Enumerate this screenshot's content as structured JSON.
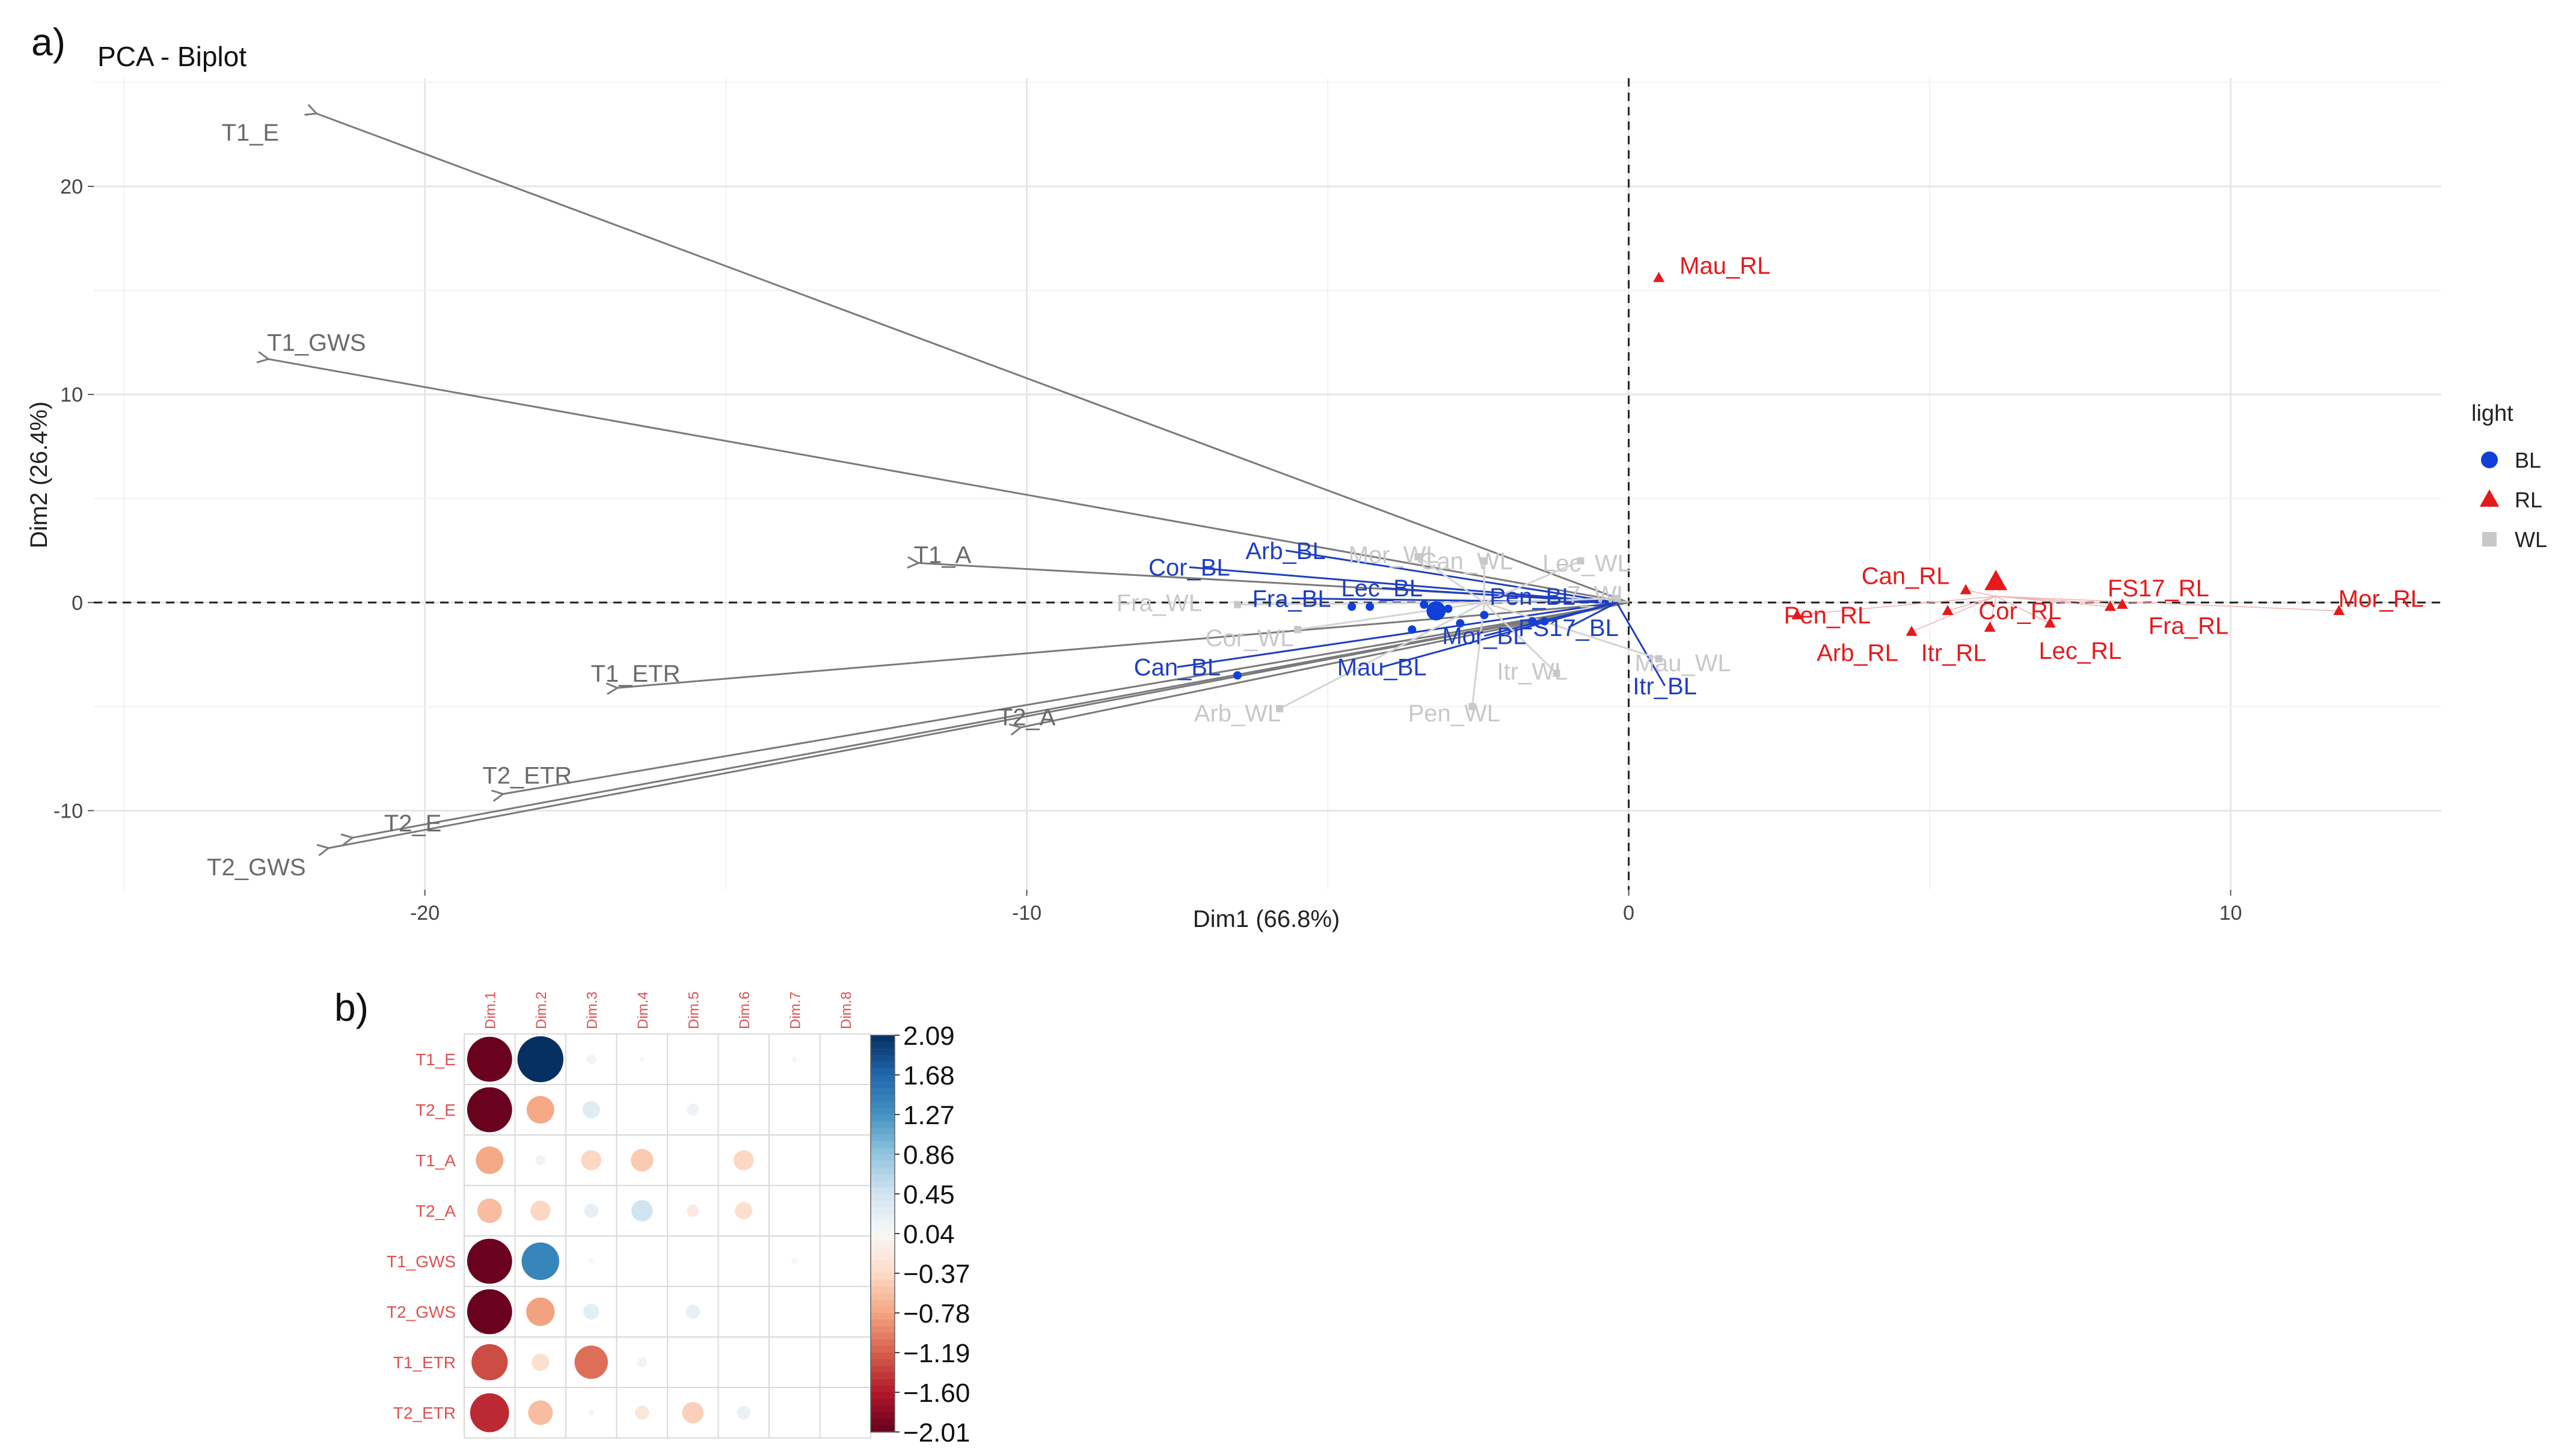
{
  "panel_a_label": "a)",
  "panel_b_label": "b)",
  "colors": {
    "BL": "#1f3fbf",
    "BL_point": "#1040d8",
    "RL": "#e41a1c",
    "WL": "#c8c8c8",
    "arrow": "#7a7a7a",
    "var_label": "#6a6a6a",
    "grid": "#ebebeb",
    "corr_neg": "#8b0a1e",
    "corr_pos": "#053061",
    "corr_label": "#e05050"
  },
  "chart_data": [
    {
      "type": "scatter",
      "title": "PCA - Biplot",
      "xlabel": "Dim1 (66.8%)",
      "ylabel": "Dim2 (26.4%)",
      "xlim": [
        -25.5,
        13.5
      ],
      "ylim": [
        -13.8,
        25.2
      ],
      "xticks": [
        -20,
        -10,
        0,
        10
      ],
      "yticks": [
        -10,
        0,
        10,
        20
      ],
      "grid": true,
      "legend": {
        "title": "light",
        "placement": "right",
        "entries": [
          {
            "key": "BL",
            "label": "BL",
            "shape": "circle"
          },
          {
            "key": "RL",
            "label": "RL",
            "shape": "triangle"
          },
          {
            "key": "WL",
            "label": "WL",
            "shape": "square"
          }
        ]
      },
      "variables": [
        {
          "name": "T1_E",
          "x": -21.8,
          "y": 23.5,
          "lx": -22.9,
          "ly": 22.6
        },
        {
          "name": "T1_GWS",
          "x": -22.6,
          "y": 11.7,
          "lx": -21.8,
          "ly": 12.5
        },
        {
          "name": "T1_A",
          "x": -11.8,
          "y": 1.9,
          "lx": -11.4,
          "ly": 2.3
        },
        {
          "name": "T1_ETR",
          "x": -16.8,
          "y": -4.1,
          "lx": -16.5,
          "ly": -3.4
        },
        {
          "name": "T2_A",
          "x": -10.1,
          "y": -6.0,
          "lx": -10.0,
          "ly": -5.5
        },
        {
          "name": "T2_ETR",
          "x": -18.7,
          "y": -9.2,
          "lx": -18.3,
          "ly": -8.3
        },
        {
          "name": "T2_E",
          "x": -21.2,
          "y": -11.3,
          "lx": -20.2,
          "ly": -10.6
        },
        {
          "name": "T2_GWS",
          "x": -21.6,
          "y": -11.8,
          "lx": -22.8,
          "ly": -12.7
        }
      ],
      "points": [
        {
          "label": "Mau_RL",
          "group": "RL",
          "x": 0.5,
          "y": 15.6,
          "lx": 1.6,
          "ly": 16.2
        },
        {
          "label": "Can_RL",
          "group": "RL",
          "x": 5.6,
          "y": 0.6,
          "lx": 4.6,
          "ly": 1.3
        },
        {
          "label": "Pen_RL",
          "group": "RL",
          "x": 2.8,
          "y": -0.6,
          "lx": 3.3,
          "ly": -0.6
        },
        {
          "label": "Cor_RL",
          "group": "RL",
          "x": 5.3,
          "y": -0.4,
          "lx": 6.5,
          "ly": -0.4
        },
        {
          "label": "FS17_RL",
          "group": "RL",
          "x": 8.2,
          "y": -0.1,
          "lx": 8.8,
          "ly": 0.7
        },
        {
          "label": "Mor_RL",
          "group": "RL",
          "x": 11.8,
          "y": -0.4,
          "lx": 12.5,
          "ly": 0.2
        },
        {
          "label": "Fra_RL",
          "group": "RL",
          "x": 8.0,
          "y": -0.2,
          "lx": 9.3,
          "ly": -1.1
        },
        {
          "label": "Arb_RL",
          "group": "RL",
          "x": 4.7,
          "y": -1.4,
          "lx": 3.8,
          "ly": -2.4
        },
        {
          "label": "Itr_RL",
          "group": "RL",
          "x": 6.0,
          "y": -1.2,
          "lx": 5.4,
          "ly": -2.4
        },
        {
          "label": "Lec_RL",
          "group": "RL",
          "x": 7.0,
          "y": -1.0,
          "lx": 7.5,
          "ly": -2.3
        },
        {
          "label": "Cor_BL",
          "group": "BL",
          "x": -4.6,
          "y": -0.2,
          "lx": -7.3,
          "ly": 1.7
        },
        {
          "label": "Arb_BL",
          "group": "BL",
          "x": -4.3,
          "y": -0.2,
          "lx": -5.7,
          "ly": 2.5
        },
        {
          "label": "Fra_BL",
          "group": "BL",
          "x": -3.4,
          "y": -0.1,
          "lx": -5.6,
          "ly": 0.2
        },
        {
          "label": "Lec_BL",
          "group": "BL",
          "x": -3.0,
          "y": -0.3,
          "lx": -4.1,
          "ly": 0.7
        },
        {
          "label": "Pen_BL",
          "group": "BL",
          "x": -2.4,
          "y": -0.6,
          "lx": -1.6,
          "ly": 0.3
        },
        {
          "label": "Mor_BL",
          "group": "BL",
          "x": -2.8,
          "y": -1.0,
          "lx": -2.4,
          "ly": -1.6
        },
        {
          "label": "Mau_BL",
          "group": "BL",
          "x": -3.6,
          "y": -1.3,
          "lx": -4.1,
          "ly": -3.1
        },
        {
          "label": "Can_BL",
          "group": "BL",
          "x": -6.5,
          "y": -3.5,
          "lx": -7.5,
          "ly": -3.1
        },
        {
          "label": "FS17_BL",
          "group": "BL",
          "x": -1.4,
          "y": -0.9,
          "lx": -1.0,
          "ly": -1.2
        },
        {
          "label": "Itr_BL",
          "group": "BL",
          "x": -1.6,
          "y": -0.9,
          "lx": 0.6,
          "ly": -4.0
        },
        {
          "label": "Mor_WL",
          "group": "WL",
          "x": -3.5,
          "y": 2.2,
          "lx": -3.9,
          "ly": 2.3
        },
        {
          "label": "Can_WL",
          "group": "WL",
          "x": -2.4,
          "y": 2.0,
          "lx": -2.7,
          "ly": 2.0
        },
        {
          "label": "Lec_WL",
          "group": "WL",
          "x": -0.8,
          "y": 2.0,
          "lx": -0.7,
          "ly": 1.9
        },
        {
          "label": "Fra_WL",
          "group": "WL",
          "x": -6.5,
          "y": -0.1,
          "lx": -7.8,
          "ly": 0.0
        },
        {
          "label": "Cor_WL",
          "group": "WL",
          "x": -5.5,
          "y": -1.3,
          "lx": -6.3,
          "ly": -1.7
        },
        {
          "label": "Arb_WL",
          "group": "WL",
          "x": -5.8,
          "y": -5.1,
          "lx": -6.5,
          "ly": -5.3
        },
        {
          "label": "Pen_WL",
          "group": "WL",
          "x": -2.6,
          "y": -5.0,
          "lx": -2.9,
          "ly": -5.3
        },
        {
          "label": "Itr_WL",
          "group": "WL",
          "x": -1.2,
          "y": -3.4,
          "lx": -1.6,
          "ly": -3.3
        },
        {
          "label": "Mau_WL",
          "group": "WL",
          "x": 0.5,
          "y": -2.7,
          "lx": 0.9,
          "ly": -2.9
        },
        {
          "label": "FS17_WL",
          "display": "7_WL",
          "group": "WL",
          "x": -0.2,
          "y": 0.2,
          "lx": -0.5,
          "ly": 0.4
        }
      ],
      "centroids": [
        {
          "group": "BL",
          "x": -3.2,
          "y": -0.4
        },
        {
          "group": "RL",
          "x": 6.1,
          "y": 1.0
        }
      ]
    },
    {
      "type": "heatmap",
      "subtype": "correlation-circle",
      "columns": [
        "Dim.1",
        "Dim.2",
        "Dim.3",
        "Dim.4",
        "Dim.5",
        "Dim.6",
        "Dim.7",
        "Dim.8"
      ],
      "rows": [
        "T1_E",
        "T2_E",
        "T1_A",
        "T2_A",
        "T1_GWS",
        "T2_GWS",
        "T1_ETR",
        "T2_ETR"
      ],
      "values": [
        [
          -2.0,
          2.09,
          0.1,
          0.02,
          0.0,
          0.0,
          0.03,
          0.0
        ],
        [
          -2.0,
          -0.75,
          0.3,
          0.0,
          0.15,
          0.0,
          0.0,
          0.0
        ],
        [
          -0.75,
          0.1,
          -0.4,
          -0.5,
          0.0,
          -0.4,
          0.0,
          0.0
        ],
        [
          -0.6,
          -0.4,
          0.2,
          0.45,
          -0.15,
          -0.3,
          0.0,
          0.0
        ],
        [
          -2.0,
          1.4,
          0.03,
          0.0,
          0.0,
          0.0,
          0.04,
          0.0
        ],
        [
          -2.0,
          -0.8,
          0.25,
          0.0,
          0.2,
          0.0,
          0.0,
          0.0
        ],
        [
          -1.3,
          -0.3,
          -1.1,
          0.1,
          0.0,
          0.0,
          0.0,
          0.0
        ],
        [
          -1.5,
          -0.6,
          -0.03,
          -0.2,
          -0.45,
          0.18,
          0.0,
          0.0
        ]
      ],
      "colorbar_ticks": [
        "2.09",
        "1.68",
        "1.27",
        "0.86",
        "0.45",
        "0.04",
        "−0.37",
        "−0.78",
        "−1.19",
        "−1.60",
        "−2.01"
      ],
      "range": [
        -2.01,
        2.09
      ]
    }
  ]
}
